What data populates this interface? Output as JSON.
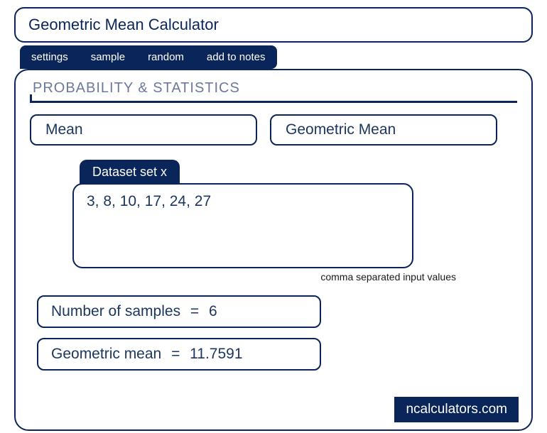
{
  "title": "Geometric Mean Calculator",
  "tabs": {
    "settings": "settings",
    "sample": "sample",
    "random": "random",
    "notes": "add to notes"
  },
  "section_header": "PROBABILITY & STATISTICS",
  "chips": {
    "mean": "Mean",
    "geometric_mean": "Geometric Mean"
  },
  "dataset": {
    "label": "Dataset set x",
    "value": "3, 8, 10, 17, 24, 27",
    "helper": "comma separated input values"
  },
  "results": {
    "samples_label": "Number of samples",
    "samples_value": "6",
    "geomean_label": "Geometric mean",
    "geomean_value": "11.7591",
    "equals": "="
  },
  "footer": "ncalculators.com",
  "colors": {
    "primary": "#0a2559",
    "text": "#1a365d",
    "muted": "#6b7a99",
    "background": "#ffffff"
  }
}
